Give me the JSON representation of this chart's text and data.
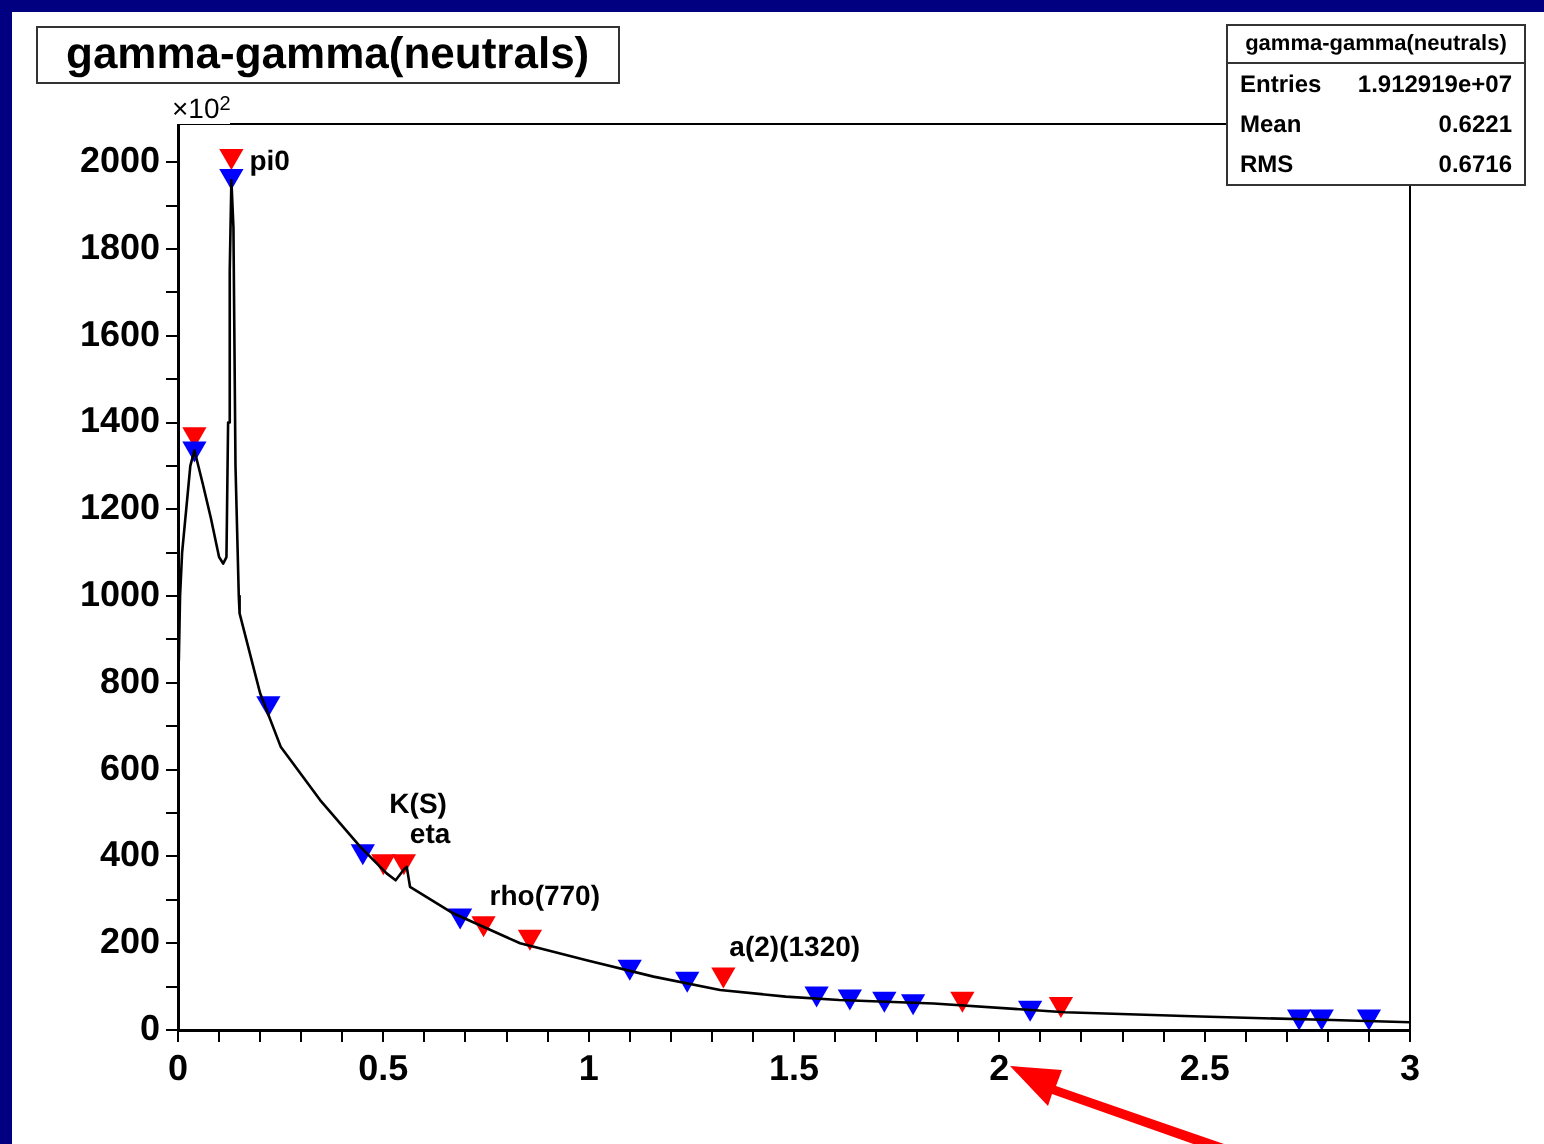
{
  "chart_data": {
    "type": "line",
    "title": "gamma-gamma(neutrals)",
    "ylabel": "×10$^{2}$",
    "xlim": [
      0,
      3
    ],
    "ylim": [
      0,
      2088
    ],
    "xticks": [
      0,
      {
        "value": 0.1,
        "label": null
      },
      {
        "value": 0.2,
        "label": null
      },
      {
        "value": 0.3,
        "label": null
      },
      {
        "value": 0.4,
        "label": null
      },
      0.5,
      {
        "value": 0.6,
        "label": null
      },
      {
        "value": 0.7,
        "label": null
      },
      {
        "value": 0.8,
        "label": null
      },
      {
        "value": 0.9,
        "label": null
      },
      1,
      {
        "value": 1.1,
        "label": null
      },
      {
        "value": 1.2,
        "label": null
      },
      {
        "value": 1.3,
        "label": null
      },
      {
        "value": 1.4,
        "label": null
      },
      1.5,
      {
        "value": 1.6,
        "label": null
      },
      {
        "value": 1.7,
        "label": null
      },
      {
        "value": 1.8,
        "label": null
      },
      {
        "value": 1.9,
        "label": null
      },
      2,
      {
        "value": 2.1,
        "label": null
      },
      {
        "value": 2.2,
        "label": null
      },
      {
        "value": 2.3,
        "label": null
      },
      {
        "value": 2.4,
        "label": null
      },
      2.5,
      {
        "value": 2.6,
        "label": null
      },
      {
        "value": 2.7,
        "label": null
      },
      {
        "value": 2.8,
        "label": null
      },
      {
        "value": 2.9,
        "label": null
      },
      3
    ],
    "yticks": [
      0,
      {
        "value": 100,
        "label": null
      },
      200,
      {
        "value": 300,
        "label": null
      },
      400,
      {
        "value": 500,
        "label": null
      },
      600,
      {
        "value": 700,
        "label": null
      },
      800,
      {
        "value": 900,
        "label": null
      },
      1000,
      {
        "value": 1100,
        "label": null
      },
      1200,
      {
        "value": 1300,
        "label": null
      },
      1400,
      {
        "value": 1500,
        "label": null
      },
      1600,
      {
        "value": 1700,
        "label": null
      },
      1800,
      {
        "value": 1900,
        "label": null
      },
      2000
    ],
    "grid": false,
    "legend": false,
    "marker": "triangle",
    "series": [
      {
        "type": "line",
        "marker": "none",
        "color": "#000000",
        "x": [
          0.002,
          0.005,
          0.01,
          0.02,
          0.03,
          0.04,
          0.06,
          0.08,
          0.1,
          0.11,
          0.118,
          0.122,
          0.126,
          0.13,
          0.135,
          0.14,
          0.148,
          0.15,
          0.2,
          0.25,
          0.346,
          0.443,
          0.508,
          0.53,
          0.55,
          0.557,
          0.565,
          0.67,
          0.833,
          0.995,
          1.158,
          1.32,
          1.48,
          1.61,
          1.84,
          2.16,
          2.49,
          2.81,
          3.0
        ],
        "values": [
          850,
          1000,
          1100,
          1200,
          1300,
          1336,
          1260,
          1180,
          1090,
          1075,
          1090,
          1400,
          1750,
          1958,
          1850,
          1300,
          1000,
          960,
          776,
          653,
          530,
          423,
          361,
          345,
          370,
          376,
          330,
          269,
          200,
          161,
          123,
          92,
          77,
          69,
          61,
          41,
          31,
          23,
          18
        ]
      },
      {
        "type": "scatter",
        "color": "#0000ff",
        "x": [
          0.04,
          0.13,
          0.22,
          0.45,
          0.687,
          1.1,
          1.24,
          1.555,
          1.636,
          1.72,
          1.79,
          2.075,
          2.73,
          2.785,
          2.9
        ],
        "values": [
          1340,
          1968,
          753,
          412,
          264,
          146,
          118,
          84,
          77,
          72,
          66,
          51,
          31,
          31,
          31
        ]
      },
      {
        "type": "scatter",
        "color": "#ff0000",
        "x": [
          0.04,
          0.13,
          0.5,
          0.55,
          0.744,
          0.857,
          1.328,
          1.91,
          2.15
        ],
        "values": [
          1373,
          2014,
          389,
          389,
          246,
          215,
          128,
          72,
          60
        ]
      }
    ],
    "annotations": [
      "Entries",
      "1.912919e+07",
      "Mean",
      "0.6221",
      "RMS",
      "0.6716",
      {
        "text": "pi0",
        "x": 0.13,
        "y": 2014
      },
      {
        "text": "K(S)",
        "x": 0.5,
        "y": 389
      },
      {
        "text": "eta",
        "x": 0.55,
        "y": 389
      },
      {
        "text": "rho(770)",
        "x": 0.744,
        "y": 246
      },
      {
        "text": "a(2)(1320)",
        "x": 1.328,
        "y": 128
      }
    ]
  }
}
